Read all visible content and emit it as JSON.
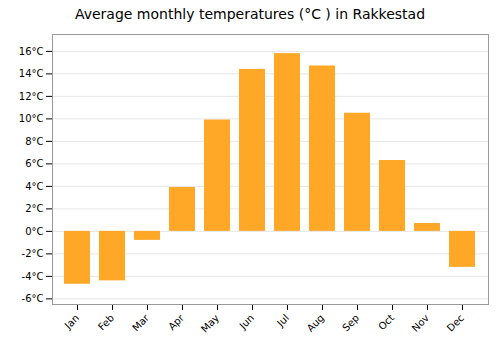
{
  "chart_data": {
    "type": "bar",
    "title": "Average monthly temperatures (°C ) in Rakkestad",
    "categories": [
      "Jan",
      "Feb",
      "Mar",
      "Apr",
      "May",
      "Jun",
      "Jul",
      "Aug",
      "Sep",
      "Oct",
      "Nov",
      "Dec"
    ],
    "values": [
      -4.7,
      -4.4,
      -0.8,
      3.9,
      9.9,
      14.4,
      15.8,
      14.7,
      10.5,
      6.3,
      0.7,
      -3.2
    ],
    "color": "#FFA726",
    "ylim": [
      -6.5,
      17.5
    ],
    "yticks": [
      {
        "value": -6,
        "label": "-6°C"
      },
      {
        "value": -4,
        "label": "-4°C"
      },
      {
        "value": -2,
        "label": "-2°C"
      },
      {
        "value": 0,
        "label": "0°C"
      },
      {
        "value": 2,
        "label": "2°C"
      },
      {
        "value": 4,
        "label": "4°C"
      },
      {
        "value": 6,
        "label": "6°C"
      },
      {
        "value": 8,
        "label": "8°C"
      },
      {
        "value": 10,
        "label": "10°C"
      },
      {
        "value": 12,
        "label": "12°C"
      },
      {
        "value": 14,
        "label": "14°C"
      },
      {
        "value": 16,
        "label": "16°C"
      }
    ],
    "grid": true
  }
}
